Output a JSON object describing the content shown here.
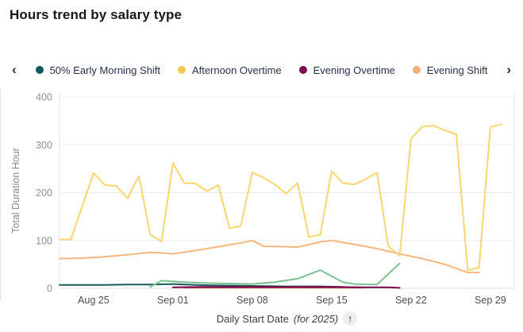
{
  "header": {
    "title": "Hours trend by salary type"
  },
  "legend": {
    "prev_label": "‹",
    "next_label": "›",
    "items": [
      {
        "label": "50% Early Morning Shift",
        "color": "#11585c"
      },
      {
        "label": "Afternoon Overtime",
        "color": "#efcb52"
      },
      {
        "label": "Evening Overtime",
        "color": "#7a0c4f"
      },
      {
        "label": "Evening Shift",
        "color": "#f0b377"
      }
    ]
  },
  "chart_data": {
    "type": "line",
    "title": "Hours trend by salary type",
    "ylabel": "Total Duration Hour",
    "xlabel": "Daily Start Date",
    "xlabel_note": "(for 2025)",
    "sort_icon": "↑",
    "ylim": [
      0,
      400
    ],
    "yticks": [
      0,
      100,
      200,
      300,
      400
    ],
    "grid": "horizontal",
    "legend_position": "top",
    "x_axis": {
      "unit": "day",
      "day0_date": "Aug 22",
      "last_day_date": "Sep 30"
    },
    "xticks": [
      {
        "day": 3,
        "label": "Aug 25"
      },
      {
        "day": 10,
        "label": "Sep 01"
      },
      {
        "day": 17,
        "label": "Sep 08"
      },
      {
        "day": 24,
        "label": "Sep 15"
      },
      {
        "day": 31,
        "label": "Sep 22"
      },
      {
        "day": 38,
        "label": "Sep 29"
      }
    ],
    "series": [
      {
        "name": "50% Early Morning Shift",
        "color": "#1b5a5a",
        "width": 2,
        "points": [
          [
            0,
            7
          ],
          [
            2,
            7
          ],
          [
            4,
            7
          ],
          [
            6,
            8
          ],
          [
            8,
            8
          ],
          [
            10,
            9
          ],
          [
            12,
            7
          ],
          [
            14,
            6
          ],
          [
            17,
            5
          ],
          [
            20,
            4
          ],
          [
            23,
            4
          ],
          [
            25,
            3
          ]
        ]
      },
      {
        "name": "hidden-legend-red-series",
        "color": "#cc4a3f",
        "width": 1.5,
        "points": [
          [
            11,
            1
          ],
          [
            15,
            1
          ],
          [
            19,
            1
          ],
          [
            23,
            1
          ],
          [
            27,
            1
          ]
        ]
      },
      {
        "name": "Evening Overtime",
        "color": "#760d4d",
        "width": 2,
        "points": [
          [
            10,
            2
          ],
          [
            13,
            3
          ],
          [
            17,
            3
          ],
          [
            21,
            3
          ],
          [
            24,
            3
          ],
          [
            27,
            2
          ],
          [
            29,
            2
          ],
          [
            30,
            1
          ]
        ]
      },
      {
        "name": "hidden-legend-green-series",
        "color": "#79c092",
        "width": 2,
        "points": [
          [
            8,
            3
          ],
          [
            9,
            16
          ],
          [
            11,
            13
          ],
          [
            13,
            11
          ],
          [
            15,
            10
          ],
          [
            17,
            9
          ],
          [
            19,
            13
          ],
          [
            21,
            20
          ],
          [
            23,
            38
          ],
          [
            25,
            13
          ],
          [
            26,
            9
          ],
          [
            28,
            8
          ],
          [
            30,
            52
          ]
        ]
      },
      {
        "name": "Evening Shift",
        "color": "#f4b87e",
        "width": 2,
        "points": [
          [
            0,
            62
          ],
          [
            2,
            63
          ],
          [
            4,
            66
          ],
          [
            6,
            70
          ],
          [
            8,
            75
          ],
          [
            9,
            74
          ],
          [
            10,
            72
          ],
          [
            12,
            79
          ],
          [
            14,
            87
          ],
          [
            16,
            95
          ],
          [
            17,
            100
          ],
          [
            18,
            88
          ],
          [
            20,
            87
          ],
          [
            21,
            86
          ],
          [
            23,
            97
          ],
          [
            24,
            100
          ],
          [
            26,
            92
          ],
          [
            28,
            83
          ],
          [
            30,
            72
          ],
          [
            32,
            62
          ],
          [
            34,
            50
          ],
          [
            36,
            33
          ],
          [
            37,
            33
          ]
        ]
      },
      {
        "name": "Afternoon Overtime",
        "color": "#f7d76e",
        "width": 2,
        "points": [
          [
            0,
            102
          ],
          [
            1,
            102
          ],
          [
            3,
            241
          ],
          [
            4,
            216
          ],
          [
            5,
            214
          ],
          [
            6,
            188
          ],
          [
            7,
            235
          ],
          [
            8,
            112
          ],
          [
            9,
            98
          ],
          [
            10,
            262
          ],
          [
            11,
            220
          ],
          [
            12,
            219
          ],
          [
            13,
            203
          ],
          [
            14,
            216
          ],
          [
            15,
            125
          ],
          [
            16,
            131
          ],
          [
            17,
            242
          ],
          [
            18,
            231
          ],
          [
            19,
            217
          ],
          [
            20,
            198
          ],
          [
            21,
            220
          ],
          [
            22,
            107
          ],
          [
            23,
            112
          ],
          [
            24,
            245
          ],
          [
            25,
            220
          ],
          [
            26,
            217
          ],
          [
            27,
            228
          ],
          [
            28,
            242
          ],
          [
            29,
            88
          ],
          [
            30,
            68
          ],
          [
            31,
            313
          ],
          [
            32,
            338
          ],
          [
            33,
            340
          ],
          [
            34,
            330
          ],
          [
            35,
            322
          ],
          [
            36,
            38
          ],
          [
            37,
            43
          ],
          [
            38,
            337
          ],
          [
            39,
            343
          ]
        ]
      }
    ]
  }
}
